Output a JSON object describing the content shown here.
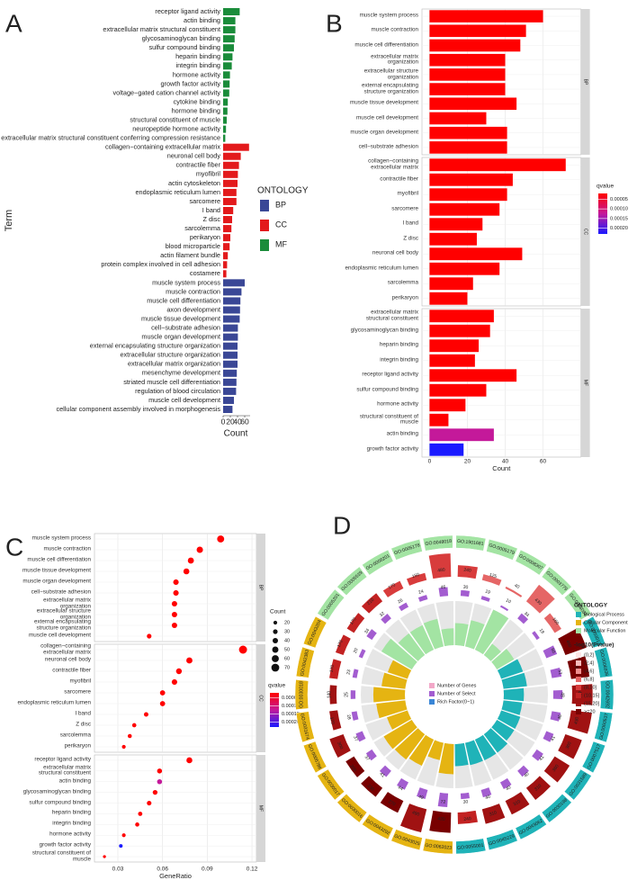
{
  "chart_data": [
    {
      "type": "bar",
      "panel": "A",
      "y_label": "Term",
      "x_label": "Count",
      "legend_title": "ONTOLOGY",
      "xlim": [
        0,
        75
      ],
      "xticks": [
        0,
        20,
        40,
        60
      ],
      "series": [
        {
          "name": "BP",
          "color": "#3a4796",
          "categories": [
            "muscle system process",
            "muscle contraction",
            "muscle cell differentiation",
            "axon development",
            "muscle tissue development",
            "cell−substrate adhesion",
            "muscle organ development",
            "external encapsulating structure organization",
            "extracellular structure organization",
            "extracellular matrix organization",
            "mesenchyme development",
            "striated muscle cell differentiation",
            "regulation of blood circulation",
            "muscle cell development",
            "cellular component assembly involved in morphogenesis"
          ],
          "values": [
            60,
            51,
            48,
            47,
            46,
            41,
            41,
            40,
            40,
            40,
            38,
            37,
            36,
            30,
            26
          ]
        },
        {
          "name": "CC",
          "color": "#e31a1c",
          "categories": [
            "collagen−containing extracellular matrix",
            "neuronal cell body",
            "contractile fiber",
            "myofibril",
            "actin cytoskeleton",
            "endoplasmic reticulum lumen",
            "sarcomere",
            "I band",
            "Z disc",
            "sarcolemma",
            "perikaryon",
            "blood microparticle",
            "actin filament bundle",
            "protein complex involved in cell adhesion",
            "costamere"
          ],
          "values": [
            72,
            49,
            44,
            41,
            40,
            37,
            37,
            28,
            25,
            23,
            20,
            18,
            13,
            11,
            9
          ]
        },
        {
          "name": "MF",
          "color": "#1a8c3a",
          "categories": [
            "receptor ligand activity",
            "actin binding",
            "extracellular matrix structural constituent",
            "glycosaminoglycan binding",
            "sulfur compound binding",
            "heparin binding",
            "integrin binding",
            "hormone activity",
            "growth factor activity",
            "voltage−gated cation channel activity",
            "cytokine binding",
            "hormone binding",
            "structural constituent of muscle",
            "neuropeptide hormone activity",
            "extracellular matrix structural constituent conferring compression resistance"
          ],
          "values": [
            46,
            34,
            34,
            32,
            30,
            26,
            24,
            19,
            18,
            17,
            13,
            12,
            10,
            8,
            6
          ]
        }
      ]
    },
    {
      "type": "bar",
      "panel": "B",
      "x_label": "Count",
      "xlim": [
        -4,
        80
      ],
      "xticks": [
        0,
        20,
        40,
        60
      ],
      "color_title": "qvalue",
      "color_lim": [
        2e-05,
        0.00023
      ],
      "color_ticks": [
        5e-05,
        {
          "value": 0.0001,
          "label": "0.00010"
        },
        0.00015,
        {
          "value": 0.0002,
          "label": "0.00020"
        }
      ],
      "facets": [
        {
          "name": "BP",
          "categories": [
            "muscle system process",
            "muscle contraction",
            "muscle cell differentiation",
            "extracellular matrix\norganization",
            "extracellular structure\norganization",
            "external encapsulating\nstructure organization",
            "muscle tissue development",
            "muscle cell development",
            "muscle organ development",
            "cell−substrate adhesion"
          ],
          "values": [
            60,
            51,
            48,
            40,
            40,
            40,
            46,
            30,
            41,
            41
          ],
          "colors": [
            "#ff0000",
            "#ff0000",
            "#ff0000",
            "#ff0000",
            "#ff0000",
            "#ff0000",
            "#ff0000",
            "#ff0000",
            "#ff0000",
            "#ff0000"
          ]
        },
        {
          "name": "CC",
          "categories": [
            "collagen−containing\nextracellular matrix",
            "contractile fiber",
            "myofibril",
            "sarcomere",
            "I band",
            "Z disc",
            "neuronal cell body",
            "endoplasmic reticulum lumen",
            "sarcolemma",
            "perikaryon"
          ],
          "values": [
            72,
            44,
            41,
            37,
            28,
            25,
            49,
            37,
            23,
            20
          ],
          "colors": [
            "#ff0000",
            "#ff0000",
            "#ff0000",
            "#ff0000",
            "#ff0000",
            "#ff0000",
            "#ff0000",
            "#ff0000",
            "#ff0000",
            "#ff0000"
          ]
        },
        {
          "name": "MF",
          "categories": [
            "extracellular matrix\nstructural constituent",
            "glycosaminoglycan binding",
            "heparin binding",
            "integrin binding",
            "receptor ligand activity",
            "sulfur compound binding",
            "hormone activity",
            "structural constituent of\nmuscle",
            "actin binding",
            "growth factor activity"
          ],
          "values": [
            34,
            32,
            26,
            24,
            46,
            30,
            19,
            10,
            34,
            18
          ],
          "colors": [
            "#ff0000",
            "#ff0000",
            "#ff0000",
            "#ff0000",
            "#ff0000",
            "#ff0000",
            "#ff0000",
            "#ff0000",
            "#c4199a",
            "#1a1aff"
          ]
        }
      ]
    },
    {
      "type": "scatter",
      "panel": "C",
      "x_label": "GeneRatio",
      "xlim": [
        0.0143,
        0.123
      ],
      "xticks": [
        0.03,
        0.06,
        0.09,
        0.12
      ],
      "size_title": "Count",
      "size_ticks": [
        20,
        30,
        40,
        50,
        60,
        70
      ],
      "color_title": "qvalue",
      "color_lim": [
        2e-05,
        0.00023
      ],
      "color_ticks": [
        5e-05,
        {
          "value": 0.0001,
          "label": "0.00010"
        },
        0.00015,
        {
          "value": 0.0002,
          "label": "0.00020"
        }
      ],
      "facets": [
        {
          "name": "BP",
          "categories": [
            "muscle system process",
            "muscle contraction",
            "muscle cell differentiation",
            "muscle tissue development",
            "muscle organ development",
            "cell−substrate adhesion",
            "extracellular matrix\norganization",
            "extracellular structure\norganization",
            "external encapsulating\nstructure organization",
            "muscle cell development"
          ],
          "values": [
            0.099,
            0.085,
            0.079,
            0.076,
            0.069,
            0.069,
            0.068,
            0.068,
            0.068,
            0.051
          ],
          "sizes": [
            60,
            51,
            48,
            46,
            41,
            41,
            40,
            40,
            40,
            30
          ],
          "colors": [
            "#ff0000",
            "#ff0000",
            "#ff0000",
            "#ff0000",
            "#ff0000",
            "#ff0000",
            "#ff0000",
            "#ff0000",
            "#ff0000",
            "#ff0000"
          ]
        },
        {
          "name": "CC",
          "categories": [
            "collagen−containing\nextracellular matrix",
            "neuronal cell body",
            "contractile fiber",
            "myofibril",
            "sarcomere",
            "endoplasmic reticulum lumen",
            "I band",
            "Z disc",
            "sarcolemma",
            "perikaryon"
          ],
          "values": [
            0.114,
            0.078,
            0.071,
            0.068,
            0.06,
            0.06,
            0.049,
            0.041,
            0.038,
            0.034
          ],
          "sizes": [
            72,
            49,
            44,
            41,
            37,
            37,
            28,
            25,
            23,
            20
          ],
          "colors": [
            "#ff0000",
            "#ff0000",
            "#ff0000",
            "#ff0000",
            "#ff0000",
            "#ff0000",
            "#ff0000",
            "#ff0000",
            "#ff0000",
            "#ff0000"
          ]
        },
        {
          "name": "MF",
          "categories": [
            "receptor ligand activity",
            "extracellular matrix\nstructural constituent",
            "actin binding",
            "glycosaminoglycan binding",
            "sulfur compound binding",
            "heparin binding",
            "integrin binding",
            "hormone activity",
            "growth factor activity",
            "structural constituent of\nmuscle"
          ],
          "values": [
            0.078,
            0.058,
            0.058,
            0.055,
            0.051,
            0.045,
            0.043,
            0.034,
            0.032,
            0.021
          ],
          "sizes": [
            46,
            34,
            34,
            32,
            30,
            26,
            24,
            19,
            18,
            10
          ],
          "colors": [
            "#ff0000",
            "#ff0000",
            "#c4199a",
            "#ff0000",
            "#ff0000",
            "#ff0000",
            "#ff0000",
            "#ff0000",
            "#1a1aff",
            "#ff0000"
          ]
        }
      ]
    },
    {
      "type": "circos",
      "panel": "D",
      "ontology_title": "ONTOLOGY",
      "ontologies": [
        {
          "name": "Biological Process",
          "color": "#1fb3b8"
        },
        {
          "name": "Cellular Component",
          "color": "#e5b412"
        },
        {
          "name": "Molecular Function",
          "color": "#a3e4a3"
        }
      ],
      "pvalue_title": "-log10(Pvalue)",
      "pvalue_bins": [
        {
          "label": "(0,2]",
          "color": "#fde6e6"
        },
        {
          "label": "(2,4]",
          "color": "#f7bcbc"
        },
        {
          "label": "(4,6]",
          "color": "#ef9191"
        },
        {
          "label": "(6,8]",
          "color": "#e56666"
        },
        {
          "label": "(8,10]",
          "color": "#d83c3c"
        },
        {
          "label": "(10,15]",
          "color": "#c22222"
        },
        {
          "label": "(15,20]",
          "color": "#a01212"
        },
        {
          "label": ">=20",
          "color": "#780000"
        }
      ],
      "center_legend": [
        {
          "label": "Number of Genes",
          "color": "#f2a8c8"
        },
        {
          "label": "Number of Select",
          "color": "#a35dd0"
        },
        {
          "label": "Rich Factor(0~1)",
          "color": "#3a86d6"
        }
      ],
      "genes_lim": [
        0,
        500
      ],
      "select_lim": [
        0,
        80
      ],
      "rich_factor_lim": [
        0,
        0.25
      ],
      "sectors": [
        {
          "id": "GO:0005201",
          "ontology": "Molecular Function",
          "genes": 170,
          "select": 34,
          "rich_factor": 0.2,
          "color": "#c22222"
        },
        {
          "id": "GO:0005539",
          "ontology": "Molecular Function",
          "genes": 210,
          "select": 32,
          "rich_factor": 0.152,
          "color": "#c22222"
        },
        {
          "id": "GO:0008201",
          "ontology": "Molecular Function",
          "genes": 170,
          "select": 26,
          "rich_factor": 0.153,
          "color": "#d83c3c"
        },
        {
          "id": "GO:0005178",
          "ontology": "Molecular Function",
          "genes": 150,
          "select": 24,
          "rich_factor": 0.16,
          "color": "#d83c3c"
        },
        {
          "id": "GO:0048018",
          "ontology": "Molecular Function",
          "genes": 480,
          "select": 46,
          "rich_factor": 0.096,
          "color": "#d83c3c"
        },
        {
          "id": "GO:1901681",
          "ontology": "Molecular Function",
          "genes": 240,
          "select": 30,
          "rich_factor": 0.125,
          "color": "#d83c3c"
        },
        {
          "id": "GO:0005179",
          "ontology": "Molecular Function",
          "genes": 125,
          "select": 19,
          "rich_factor": 0.152,
          "color": "#e56666"
        },
        {
          "id": "GO:0008307",
          "ontology": "Molecular Function",
          "genes": 40,
          "select": 10,
          "rich_factor": 0.25,
          "color": "#e56666"
        },
        {
          "id": "GO:0003779",
          "ontology": "Molecular Function",
          "genes": 430,
          "select": 34,
          "rich_factor": 0.079,
          "color": "#e56666"
        },
        {
          "id": "GO:0008083",
          "ontology": "Molecular Function",
          "genes": 160,
          "select": 18,
          "rich_factor": 0.113,
          "color": "#e56666"
        },
        {
          "id": "GO:0003012",
          "ontology": "Biological Process",
          "genes": 460,
          "select": 60,
          "rich_factor": 0.13,
          "color": "#780000"
        },
        {
          "id": "GO:0006936",
          "ontology": "Biological Process",
          "genes": 380,
          "select": 51,
          "rich_factor": 0.134,
          "color": "#780000"
        },
        {
          "id": "GO:0042692",
          "ontology": "Biological Process",
          "genes": 420,
          "select": 48,
          "rich_factor": 0.114,
          "color": "#a01212"
        },
        {
          "id": "GO:0060537",
          "ontology": "Biological Process",
          "genes": 430,
          "select": 46,
          "rich_factor": 0.107,
          "color": "#a01212"
        },
        {
          "id": "GO:0007517",
          "ontology": "Biological Process",
          "genes": 360,
          "select": 41,
          "rich_factor": 0.114,
          "color": "#a01212"
        },
        {
          "id": "GO:0031589",
          "ontology": "Biological Process",
          "genes": 360,
          "select": 41,
          "rich_factor": 0.114,
          "color": "#a01212"
        },
        {
          "id": "GO:0030198",
          "ontology": "Biological Process",
          "genes": 310,
          "select": 40,
          "rich_factor": 0.129,
          "color": "#a01212"
        },
        {
          "id": "GO:0043062",
          "ontology": "Biological Process",
          "genes": 310,
          "select": 40,
          "rich_factor": 0.129,
          "color": "#a01212"
        },
        {
          "id": "GO:0045229",
          "ontology": "Biological Process",
          "genes": 310,
          "select": 40,
          "rich_factor": 0.129,
          "color": "#a01212"
        },
        {
          "id": "GO:0055001",
          "ontology": "Biological Process",
          "genes": 240,
          "select": 30,
          "rich_factor": 0.125,
          "color": "#c22222"
        },
        {
          "id": "GO:0062023",
          "ontology": "Cellular Component",
          "genes": 420,
          "select": 72,
          "rich_factor": 0.171,
          "color": "#780000"
        },
        {
          "id": "GO:0043025",
          "ontology": "Cellular Component",
          "genes": 490,
          "select": 49,
          "rich_factor": 0.1,
          "color": "#a01212"
        },
        {
          "id": "GO:0043292",
          "ontology": "Cellular Component",
          "genes": 270,
          "select": 44,
          "rich_factor": 0.163,
          "color": "#780000"
        },
        {
          "id": "GO:0030016",
          "ontology": "Cellular Component",
          "genes": 230,
          "select": 41,
          "rich_factor": 0.178,
          "color": "#780000"
        },
        {
          "id": "GO:0030017",
          "ontology": "Cellular Component",
          "genes": 200,
          "select": 37,
          "rich_factor": 0.185,
          "color": "#780000"
        },
        {
          "id": "GO:0005788",
          "ontology": "Cellular Component",
          "genes": 300,
          "select": 37,
          "rich_factor": 0.123,
          "color": "#a01212"
        },
        {
          "id": "GO:0031674",
          "ontology": "Cellular Component",
          "genes": 170,
          "select": 28,
          "rich_factor": 0.165,
          "color": "#a01212"
        },
        {
          "id": "GO:0030018",
          "ontology": "Cellular Component",
          "genes": 140,
          "select": 25,
          "rich_factor": 0.179,
          "color": "#a01212"
        },
        {
          "id": "GO:0042383",
          "ontology": "Cellular Component",
          "genes": 170,
          "select": 23,
          "rich_factor": 0.135,
          "color": "#c22222"
        },
        {
          "id": "GO:0043204",
          "ontology": "Cellular Component",
          "genes": 170,
          "select": 20,
          "rich_factor": 0.118,
          "color": "#c22222"
        }
      ]
    }
  ]
}
